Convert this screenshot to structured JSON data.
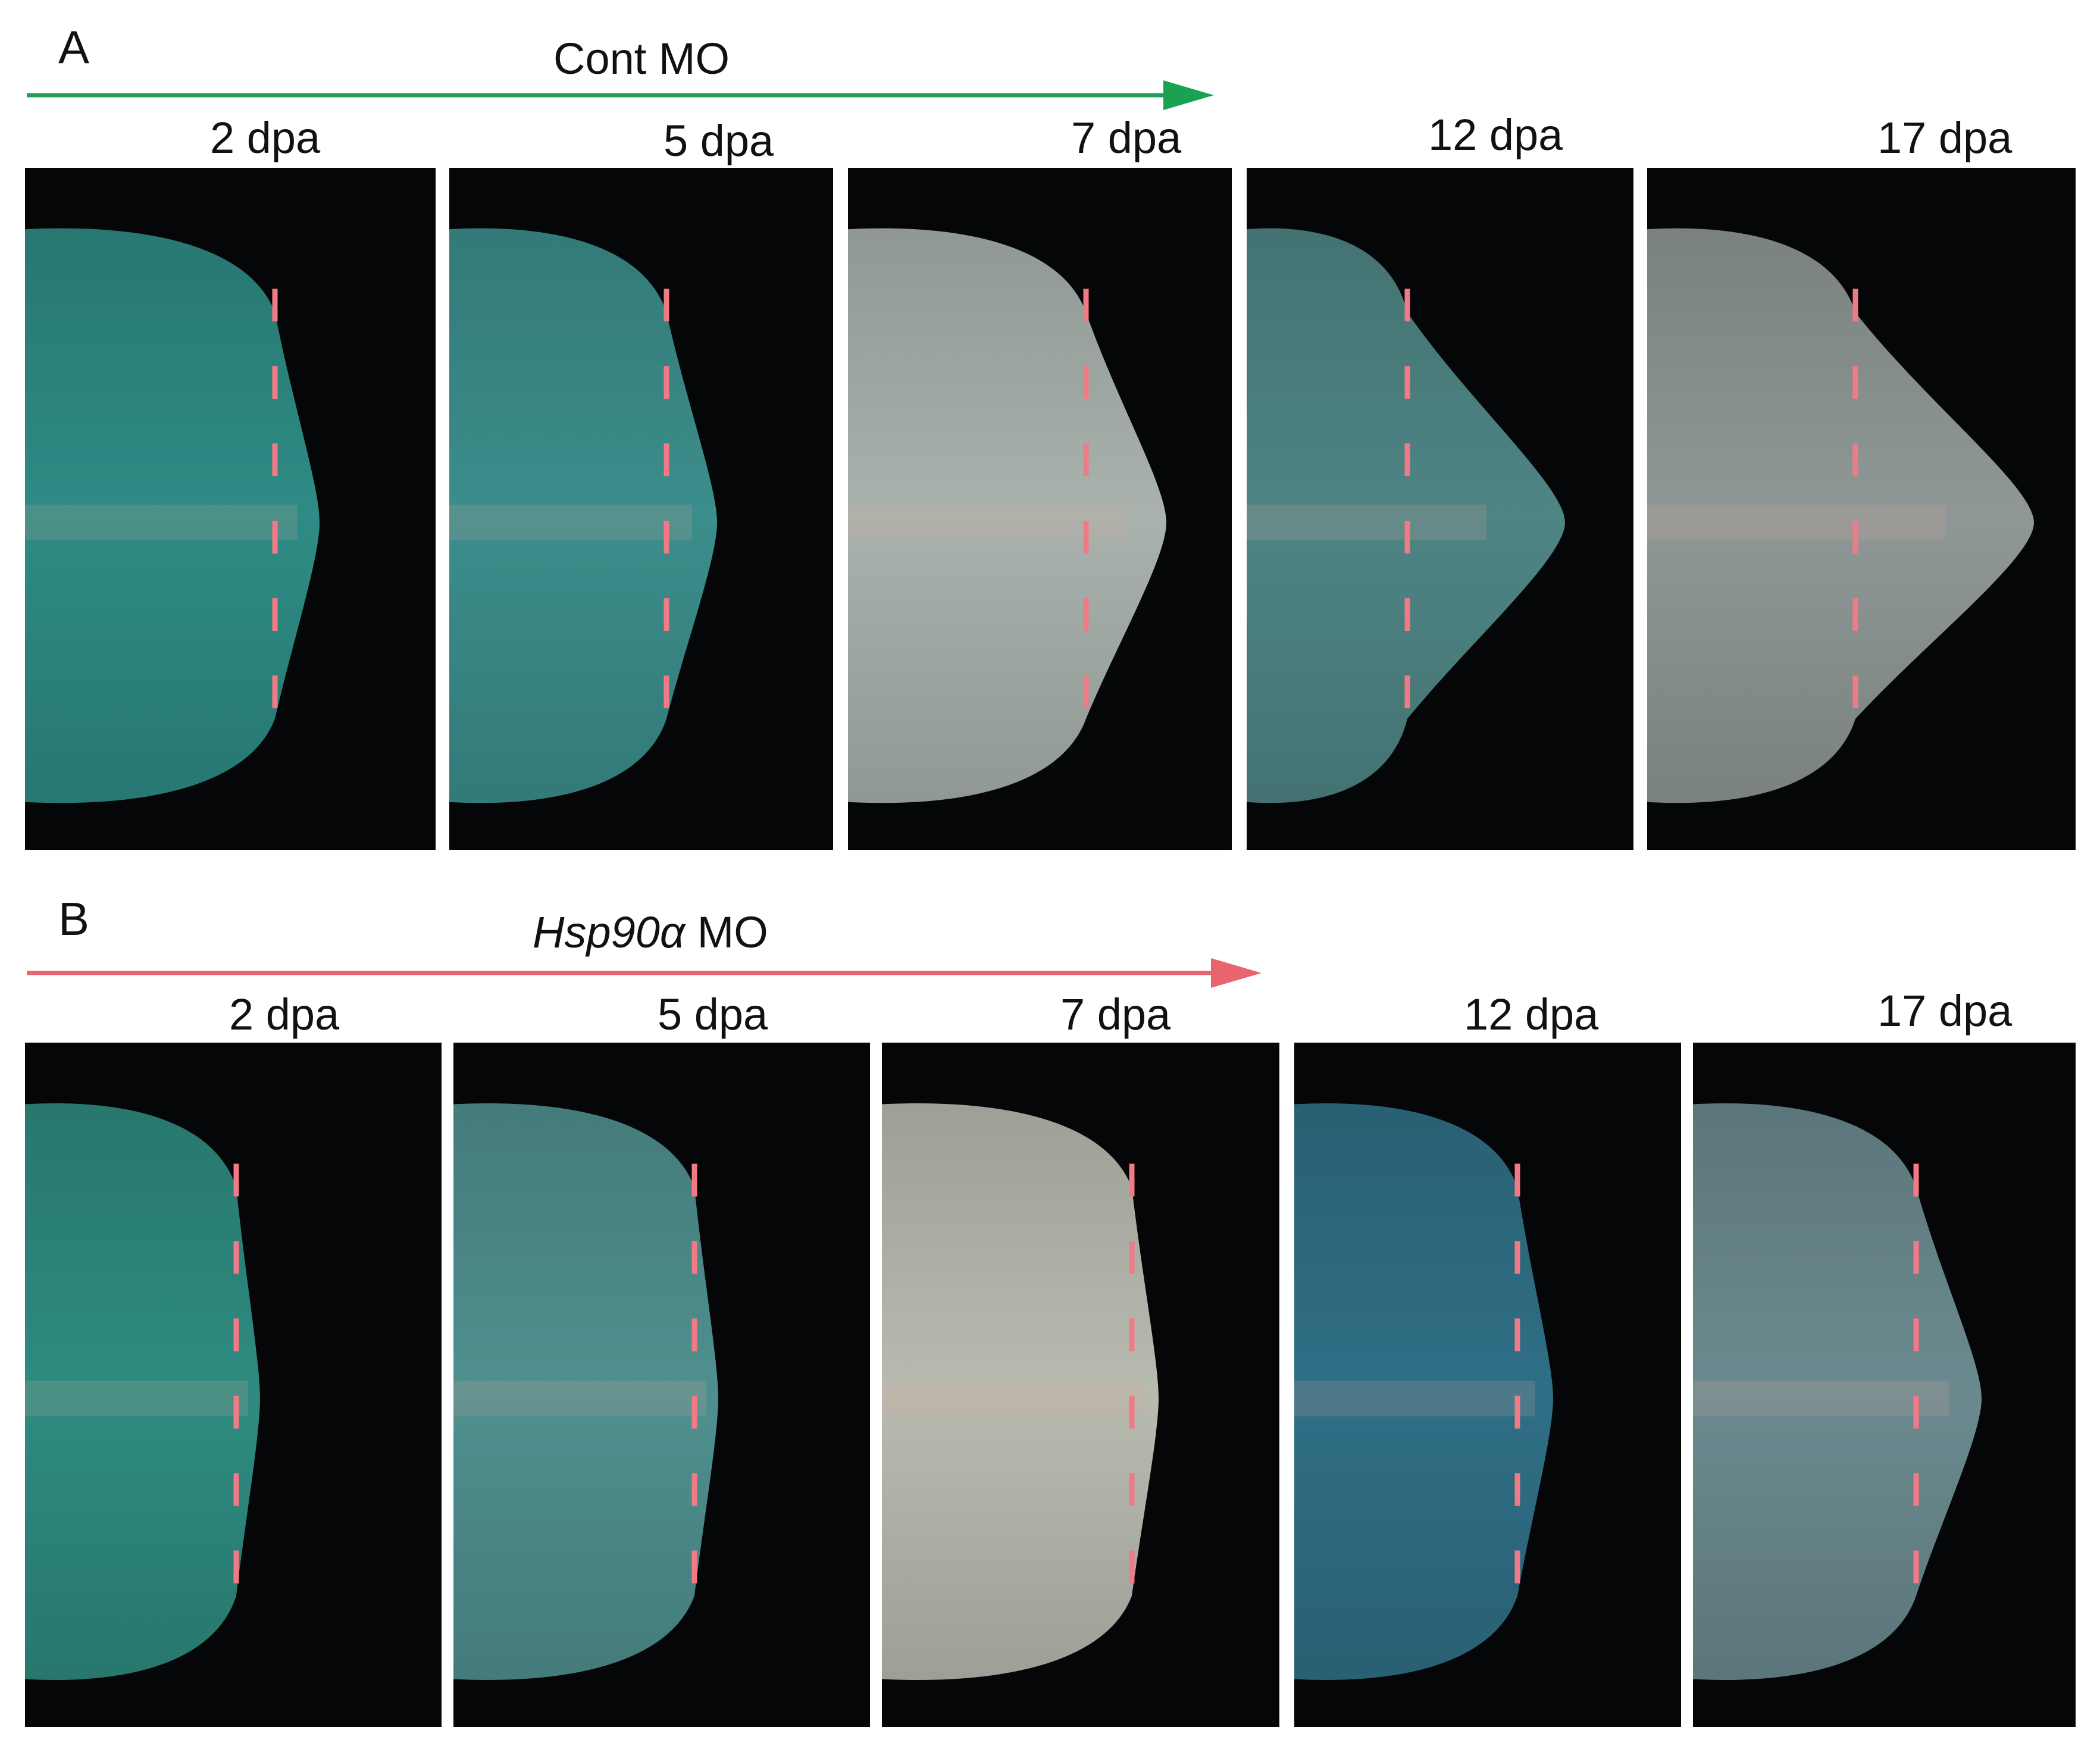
{
  "panel_a": {
    "letter": "A",
    "group_label": "Cont MO",
    "arrow_color": "#1aa152",
    "time_labels": [
      "2 dpa",
      "5 dpa",
      "7 dpa",
      "12 dpa",
      "17 dpa"
    ],
    "tissue_colors": [
      "#2e8b85",
      "#3b8e8c",
      "#a9b2ad",
      "#4f8585",
      "#8f9896"
    ]
  },
  "panel_b": {
    "letter": "B",
    "group_label_italic": "Hsp90α",
    "group_label_rest": " MO",
    "arrow_color": "#e8656f",
    "time_labels": [
      "2 dpa",
      "5 dpa",
      "7 dpa",
      "12 dpa",
      "17 dpa"
    ],
    "tissue_colors": [
      "#2e8b80",
      "#4f908f",
      "#b8bbb0",
      "#2f6f86",
      "#6b8a8f"
    ]
  },
  "amputation_line_color": "#f07a86"
}
